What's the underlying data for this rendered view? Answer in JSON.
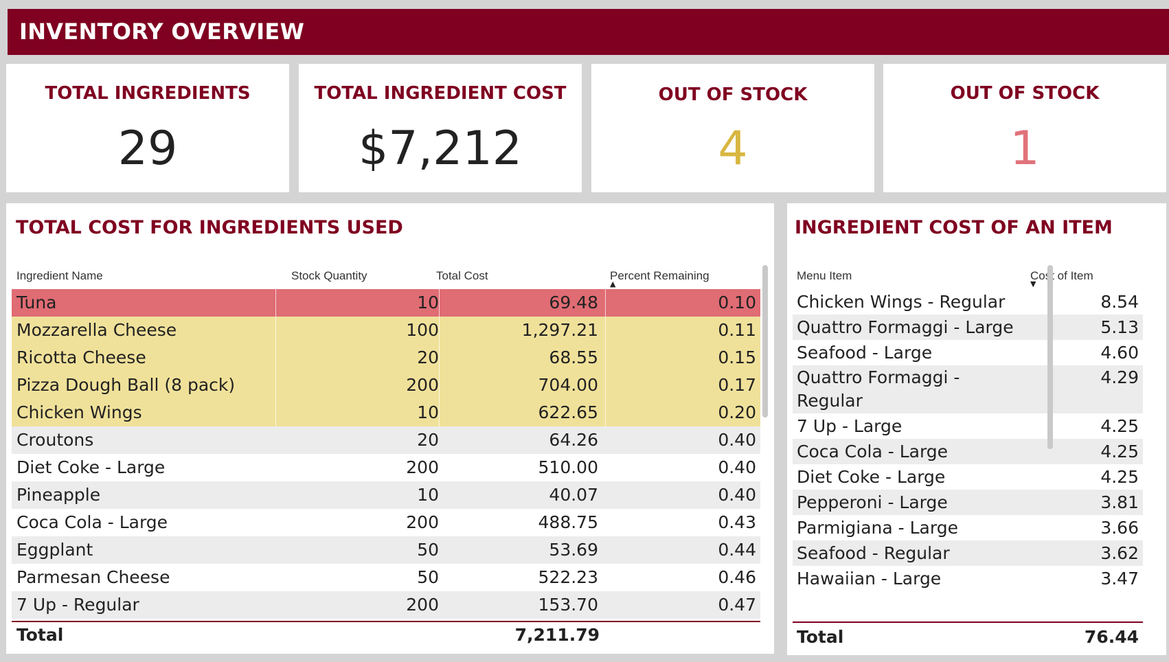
{
  "banner": {
    "title": "INVENTORY OVERVIEW",
    "bg": "#7f0020"
  },
  "cards": [
    {
      "label": "TOTAL INGREDIENTS",
      "value": "29",
      "color": "#222222"
    },
    {
      "label": "TOTAL INGREDIENT COST",
      "value": "$7,212",
      "color": "#222222"
    },
    {
      "label": "OUT OF STOCK",
      "value": "4",
      "color": "#d8b640"
    },
    {
      "label": "OUT OF STOCK",
      "value": "1",
      "color": "#e0727a"
    }
  ],
  "left_table": {
    "title": "TOTAL COST FOR INGREDIENTS USED",
    "columns": [
      "Ingredient Name",
      "Stock Quantity",
      "Total Cost",
      "Percent Remaining"
    ],
    "sort_indicator": "sort-up-icon",
    "rows": [
      {
        "name": "Tuna",
        "qty": "10",
        "cost": "69.48",
        "pct": "0.10",
        "highlight": "red"
      },
      {
        "name": "Mozzarella Cheese",
        "qty": "100",
        "cost": "1,297.21",
        "pct": "0.11",
        "highlight": "yellow"
      },
      {
        "name": "Ricotta Cheese",
        "qty": "20",
        "cost": "68.55",
        "pct": "0.15",
        "highlight": "yellow"
      },
      {
        "name": "Pizza Dough Ball (8 pack)",
        "qty": "200",
        "cost": "704.00",
        "pct": "0.17",
        "highlight": "yellow"
      },
      {
        "name": "Chicken Wings",
        "qty": "10",
        "cost": "622.65",
        "pct": "0.20",
        "highlight": "yellow"
      },
      {
        "name": "Croutons",
        "qty": "20",
        "cost": "64.26",
        "pct": "0.40",
        "highlight": "none"
      },
      {
        "name": "Diet Coke - Large",
        "qty": "200",
        "cost": "510.00",
        "pct": "0.40",
        "highlight": "none"
      },
      {
        "name": "Pineapple",
        "qty": "10",
        "cost": "40.07",
        "pct": "0.40",
        "highlight": "none"
      },
      {
        "name": "Coca Cola - Large",
        "qty": "200",
        "cost": "488.75",
        "pct": "0.43",
        "highlight": "none"
      },
      {
        "name": "Eggplant",
        "qty": "50",
        "cost": "53.69",
        "pct": "0.44",
        "highlight": "none"
      },
      {
        "name": "Parmesan Cheese",
        "qty": "50",
        "cost": "522.23",
        "pct": "0.46",
        "highlight": "none"
      },
      {
        "name": "7 Up - Regular",
        "qty": "200",
        "cost": "153.70",
        "pct": "0.47",
        "highlight": "none"
      }
    ],
    "total_label": "Total",
    "total_cost": "7,211.79"
  },
  "right_table": {
    "title": "INGREDIENT COST OF AN ITEM",
    "columns": [
      "Menu Item",
      "Cost of Item"
    ],
    "sort_indicator": "sort-down-icon",
    "rows": [
      {
        "item": "Chicken Wings - Regular",
        "cost": "8.54"
      },
      {
        "item": "Quattro Formaggi - Large",
        "cost": "5.13"
      },
      {
        "item": "Seafood - Large",
        "cost": "4.60"
      },
      {
        "item": "Quattro Formaggi - Regular",
        "cost": "4.29"
      },
      {
        "item": "7 Up - Large",
        "cost": "4.25"
      },
      {
        "item": "Coca Cola - Large",
        "cost": "4.25"
      },
      {
        "item": "Diet Coke - Large",
        "cost": "4.25"
      },
      {
        "item": "Pepperoni - Large",
        "cost": "3.81"
      },
      {
        "item": "Parmigiana - Large",
        "cost": "3.66"
      },
      {
        "item": "Seafood - Regular",
        "cost": "3.62"
      },
      {
        "item": "Hawaiian - Large",
        "cost": "3.47"
      }
    ],
    "total_label": "Total",
    "total_cost": "76.44"
  },
  "colors": {
    "accent": "#7f0020",
    "red_row": "#e06c74",
    "yellow_row": "#f0e19a",
    "stripe": "#ececec"
  }
}
